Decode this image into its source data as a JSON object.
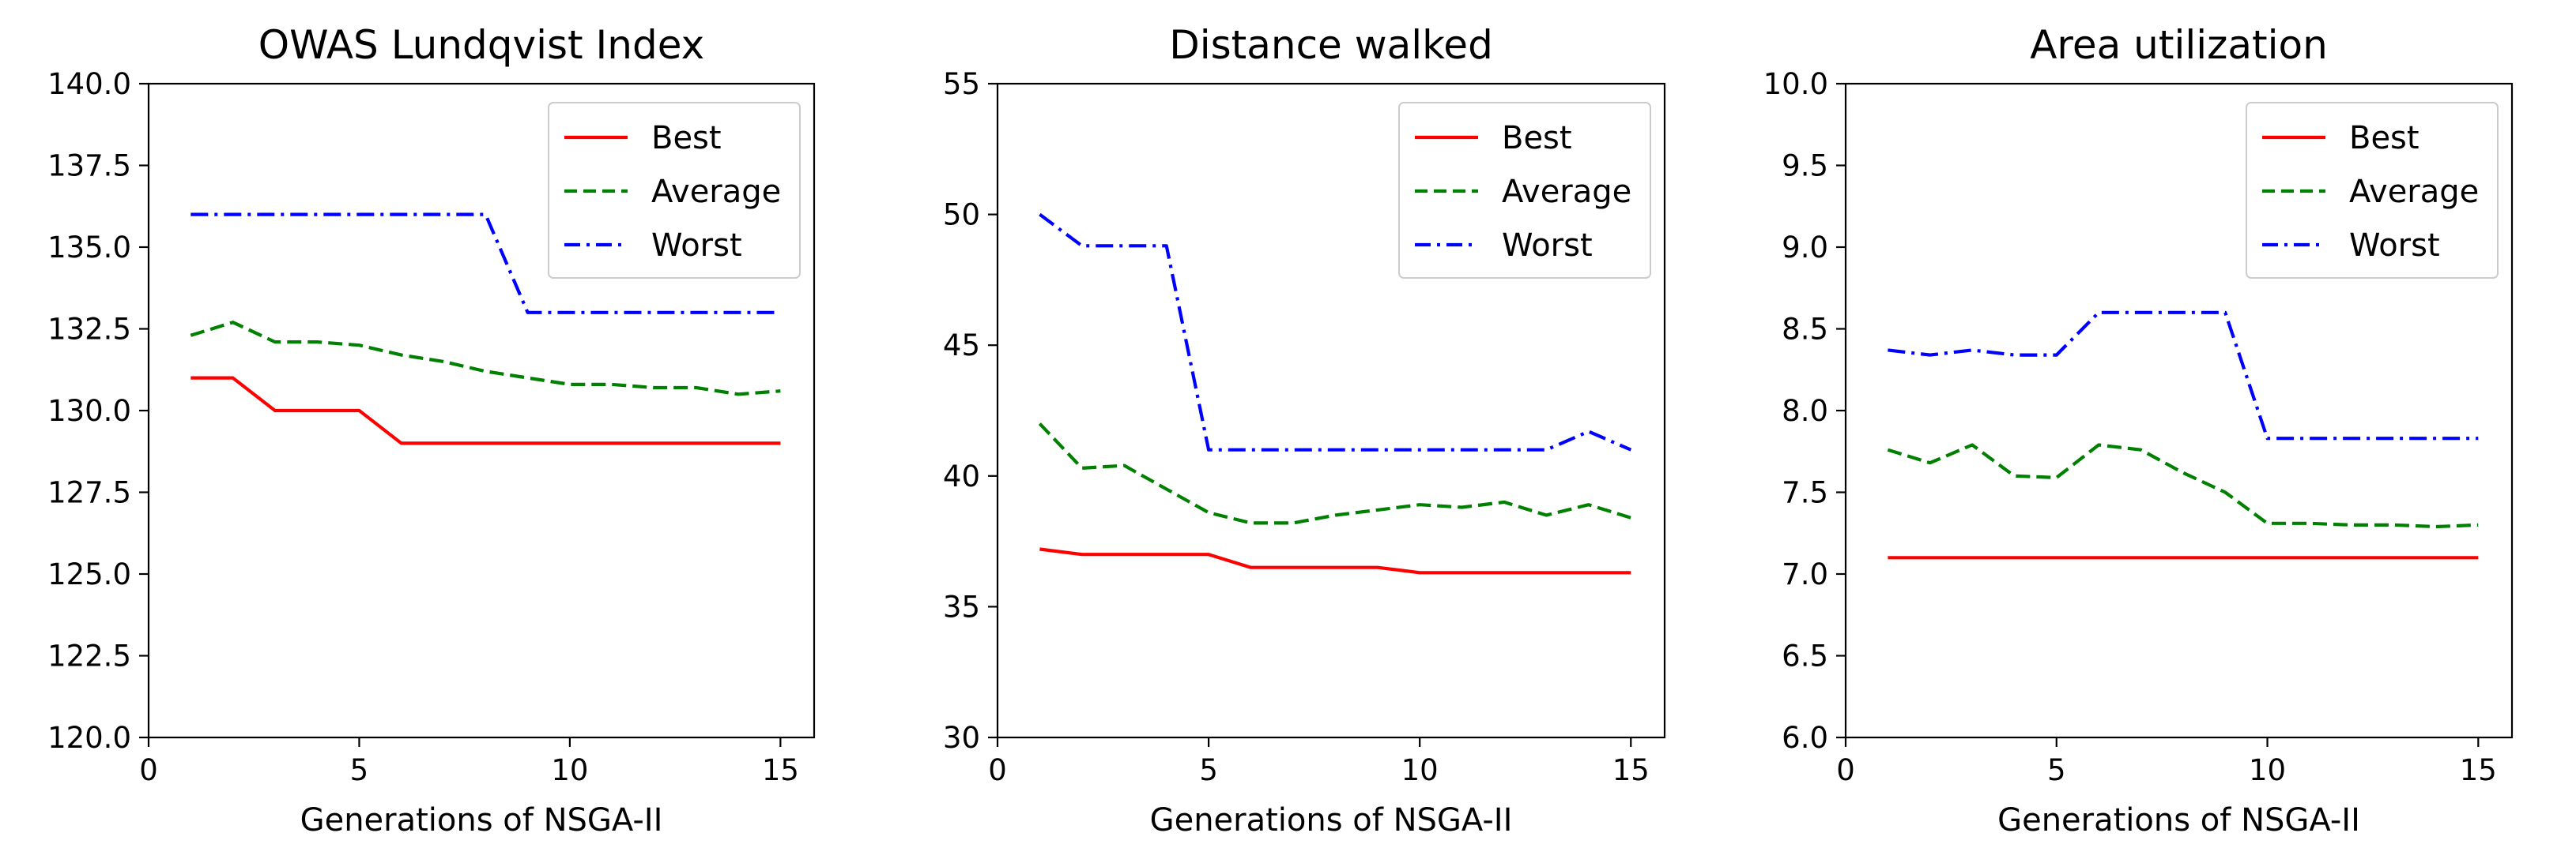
{
  "chart_data": [
    {
      "type": "line",
      "title": "OWAS Lundqvist Index",
      "xlabel": "Generations of NSGA-II",
      "ylabel": "",
      "xlim": [
        0,
        15.8
      ],
      "ylim": [
        120,
        140
      ],
      "xticks": [
        0,
        5,
        10,
        15
      ],
      "xtick_labels": [
        "0",
        "5",
        "10",
        "15"
      ],
      "yticks": [
        120,
        122.5,
        125,
        127.5,
        130,
        132.5,
        135,
        137.5,
        140
      ],
      "ytick_labels": [
        "120.0",
        "122.5",
        "125.0",
        "127.5",
        "130.0",
        "132.5",
        "135.0",
        "137.5",
        "140.0"
      ],
      "legend_position": "top-right",
      "grid": false,
      "x": [
        1,
        2,
        3,
        4,
        5,
        6,
        7,
        8,
        9,
        10,
        11,
        12,
        13,
        14,
        15
      ],
      "series": [
        {
          "name": "Best",
          "color": "#ff0000",
          "style": "solid",
          "values": [
            131,
            131,
            130,
            130,
            130,
            129,
            129,
            129,
            129,
            129,
            129,
            129,
            129,
            129,
            129
          ]
        },
        {
          "name": "Average",
          "color": "#008000",
          "style": "dashed",
          "values": [
            132.3,
            132.7,
            132.1,
            132.1,
            132.0,
            131.7,
            131.5,
            131.2,
            131.0,
            130.8,
            130.8,
            130.7,
            130.7,
            130.5,
            130.6
          ]
        },
        {
          "name": "Worst",
          "color": "#0000ff",
          "style": "dashdot",
          "values": [
            136,
            136,
            136,
            136,
            136,
            136,
            136,
            136,
            133,
            133,
            133,
            133,
            133,
            133,
            133
          ]
        }
      ]
    },
    {
      "type": "line",
      "title": "Distance walked",
      "xlabel": "Generations of NSGA-II",
      "ylabel": "",
      "xlim": [
        0,
        15.8
      ],
      "ylim": [
        30,
        55
      ],
      "xticks": [
        0,
        5,
        10,
        15
      ],
      "xtick_labels": [
        "0",
        "5",
        "10",
        "15"
      ],
      "yticks": [
        30,
        35,
        40,
        45,
        50,
        55
      ],
      "ytick_labels": [
        "30",
        "35",
        "40",
        "45",
        "50",
        "55"
      ],
      "legend_position": "top-right",
      "grid": false,
      "x": [
        1,
        2,
        3,
        4,
        5,
        6,
        7,
        8,
        9,
        10,
        11,
        12,
        13,
        14,
        15
      ],
      "series": [
        {
          "name": "Best",
          "color": "#ff0000",
          "style": "solid",
          "values": [
            37.2,
            37.0,
            37.0,
            37.0,
            37.0,
            36.5,
            36.5,
            36.5,
            36.5,
            36.3,
            36.3,
            36.3,
            36.3,
            36.3,
            36.3
          ]
        },
        {
          "name": "Average",
          "color": "#008000",
          "style": "dashed",
          "values": [
            42.0,
            40.3,
            40.4,
            39.5,
            38.6,
            38.2,
            38.2,
            38.5,
            38.7,
            38.9,
            38.8,
            39.0,
            38.5,
            38.9,
            38.4
          ]
        },
        {
          "name": "Worst",
          "color": "#0000ff",
          "style": "dashdot",
          "values": [
            50.0,
            48.8,
            48.8,
            48.8,
            41.0,
            41.0,
            41.0,
            41.0,
            41.0,
            41.0,
            41.0,
            41.0,
            41.0,
            41.7,
            41.0
          ]
        }
      ]
    },
    {
      "type": "line",
      "title": "Area utilization",
      "xlabel": "Generations of NSGA-II",
      "ylabel": "",
      "xlim": [
        0,
        15.8
      ],
      "ylim": [
        6,
        10
      ],
      "xticks": [
        0,
        5,
        10,
        15
      ],
      "xtick_labels": [
        "0",
        "5",
        "10",
        "15"
      ],
      "yticks": [
        6.0,
        6.5,
        7.0,
        7.5,
        8.0,
        8.5,
        9.0,
        9.5,
        10.0
      ],
      "ytick_labels": [
        "6.0",
        "6.5",
        "7.0",
        "7.5",
        "8.0",
        "8.5",
        "9.0",
        "9.5",
        "10.0"
      ],
      "legend_position": "top-right",
      "grid": false,
      "x": [
        1,
        2,
        3,
        4,
        5,
        6,
        7,
        8,
        9,
        10,
        11,
        12,
        13,
        14,
        15
      ],
      "series": [
        {
          "name": "Best",
          "color": "#ff0000",
          "style": "solid",
          "values": [
            7.1,
            7.1,
            7.1,
            7.1,
            7.1,
            7.1,
            7.1,
            7.1,
            7.1,
            7.1,
            7.1,
            7.1,
            7.1,
            7.1,
            7.1
          ]
        },
        {
          "name": "Average",
          "color": "#008000",
          "style": "dashed",
          "values": [
            7.76,
            7.68,
            7.79,
            7.6,
            7.59,
            7.79,
            7.76,
            7.62,
            7.5,
            7.31,
            7.31,
            7.3,
            7.3,
            7.29,
            7.3
          ]
        },
        {
          "name": "Worst",
          "color": "#0000ff",
          "style": "dashdot",
          "values": [
            8.37,
            8.34,
            8.37,
            8.34,
            8.34,
            8.6,
            8.6,
            8.6,
            8.6,
            7.83,
            7.83,
            7.83,
            7.83,
            7.83,
            7.83
          ]
        }
      ]
    }
  ]
}
